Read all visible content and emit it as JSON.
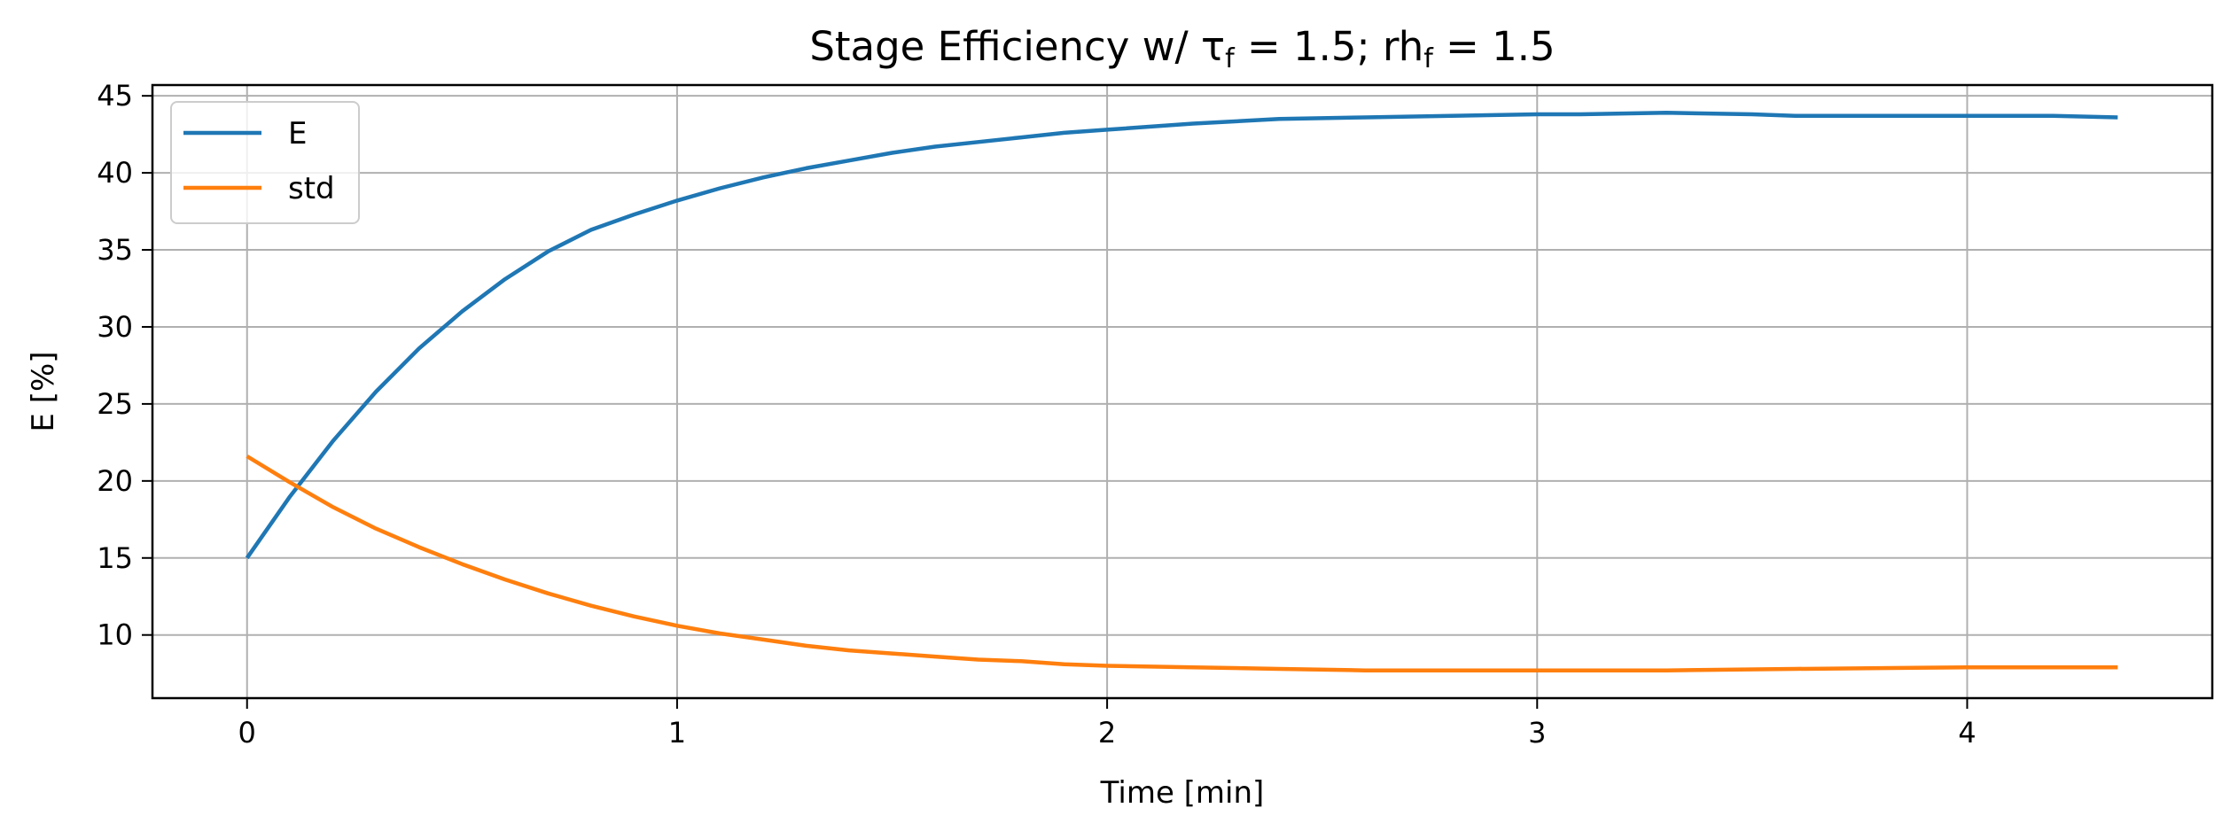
{
  "chart_data": {
    "type": "line",
    "title": "Stage Efficiency w/ τ",
    "title_parts": {
      "prefix": "Stage Efficiency w/ τ",
      "sub1": "f",
      "mid": " = 1.5; rh",
      "sub2": "f",
      "suffix": " = 1.5"
    },
    "xlabel": "Time [min]",
    "ylabel": "E [%]",
    "xlim": [
      -0.22,
      4.57
    ],
    "ylim": [
      5.9,
      45.7
    ],
    "xticks": [
      0,
      1,
      2,
      3,
      4
    ],
    "yticks": [
      10,
      15,
      20,
      25,
      30,
      35,
      40,
      45
    ],
    "grid": true,
    "legend_position": "top-left",
    "series": [
      {
        "name": "E",
        "color": "#1f77b4",
        "x": [
          0,
          0.1,
          0.2,
          0.3,
          0.4,
          0.5,
          0.6,
          0.7,
          0.8,
          0.9,
          1.0,
          1.1,
          1.2,
          1.3,
          1.4,
          1.5,
          1.6,
          1.7,
          1.8,
          1.9,
          2.0,
          2.2,
          2.4,
          2.6,
          2.8,
          3.0,
          3.1,
          3.3,
          3.5,
          3.6,
          3.8,
          4.0,
          4.2,
          4.35
        ],
        "y": [
          15.0,
          19.0,
          22.6,
          25.8,
          28.6,
          31.0,
          33.1,
          34.9,
          36.3,
          37.3,
          38.2,
          39.0,
          39.7,
          40.3,
          40.8,
          41.3,
          41.7,
          42.0,
          42.3,
          42.6,
          42.8,
          43.2,
          43.5,
          43.6,
          43.7,
          43.8,
          43.8,
          43.9,
          43.8,
          43.7,
          43.7,
          43.7,
          43.7,
          43.6
        ]
      },
      {
        "name": "std",
        "color": "#ff7f0e",
        "x": [
          0,
          0.1,
          0.2,
          0.3,
          0.4,
          0.5,
          0.6,
          0.7,
          0.8,
          0.9,
          1.0,
          1.1,
          1.2,
          1.3,
          1.4,
          1.5,
          1.6,
          1.7,
          1.8,
          1.9,
          2.0,
          2.2,
          2.4,
          2.6,
          2.8,
          3.0,
          3.3,
          3.6,
          4.0,
          4.35
        ],
        "y": [
          21.6,
          19.9,
          18.3,
          16.9,
          15.7,
          14.6,
          13.6,
          12.7,
          11.9,
          11.2,
          10.6,
          10.1,
          9.7,
          9.3,
          9.0,
          8.8,
          8.6,
          8.4,
          8.3,
          8.1,
          8.0,
          7.9,
          7.8,
          7.7,
          7.7,
          7.7,
          7.7,
          7.8,
          7.9,
          7.9
        ]
      }
    ]
  }
}
